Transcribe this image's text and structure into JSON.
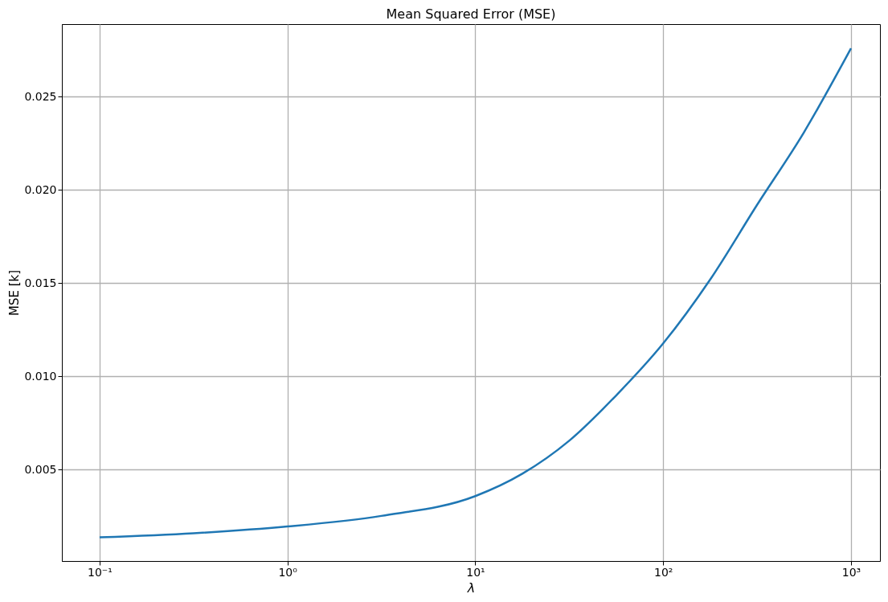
{
  "chart_data": {
    "type": "line",
    "title": "Mean Squared Error (MSE)",
    "xlabel": "λ",
    "ylabel": "MSE [k]",
    "x": [
      0.1,
      0.316,
      1,
      3.16,
      10,
      17.8,
      31.6,
      56.2,
      100,
      178,
      316,
      562,
      1000
    ],
    "series": [
      {
        "color": "#1f77b4",
        "values": [
          0.00137,
          0.00159,
          0.00195,
          0.00252,
          0.00358,
          0.00478,
          0.00655,
          0.00898,
          0.01177,
          0.0152,
          0.0192,
          0.0231,
          0.0276
        ]
      }
    ],
    "log": "x",
    "xlim": [
      0.063,
      1426
    ],
    "ylim": [
      0.0001,
      0.0289
    ],
    "xticks": [
      {
        "value": 0.1,
        "label": "10⁻¹"
      },
      {
        "value": 1,
        "label": "10⁰"
      },
      {
        "value": 10,
        "label": "10¹"
      },
      {
        "value": 100,
        "label": "10²"
      },
      {
        "value": 1000,
        "label": "10³"
      }
    ],
    "yticks": [
      {
        "value": 0.005,
        "label": "0.005"
      },
      {
        "value": 0.01,
        "label": "0.010"
      },
      {
        "value": 0.015,
        "label": "0.015"
      },
      {
        "value": 0.02,
        "label": "0.020"
      },
      {
        "value": 0.025,
        "label": "0.025"
      }
    ],
    "grid": true,
    "marker": "none",
    "line_style": "solid"
  }
}
